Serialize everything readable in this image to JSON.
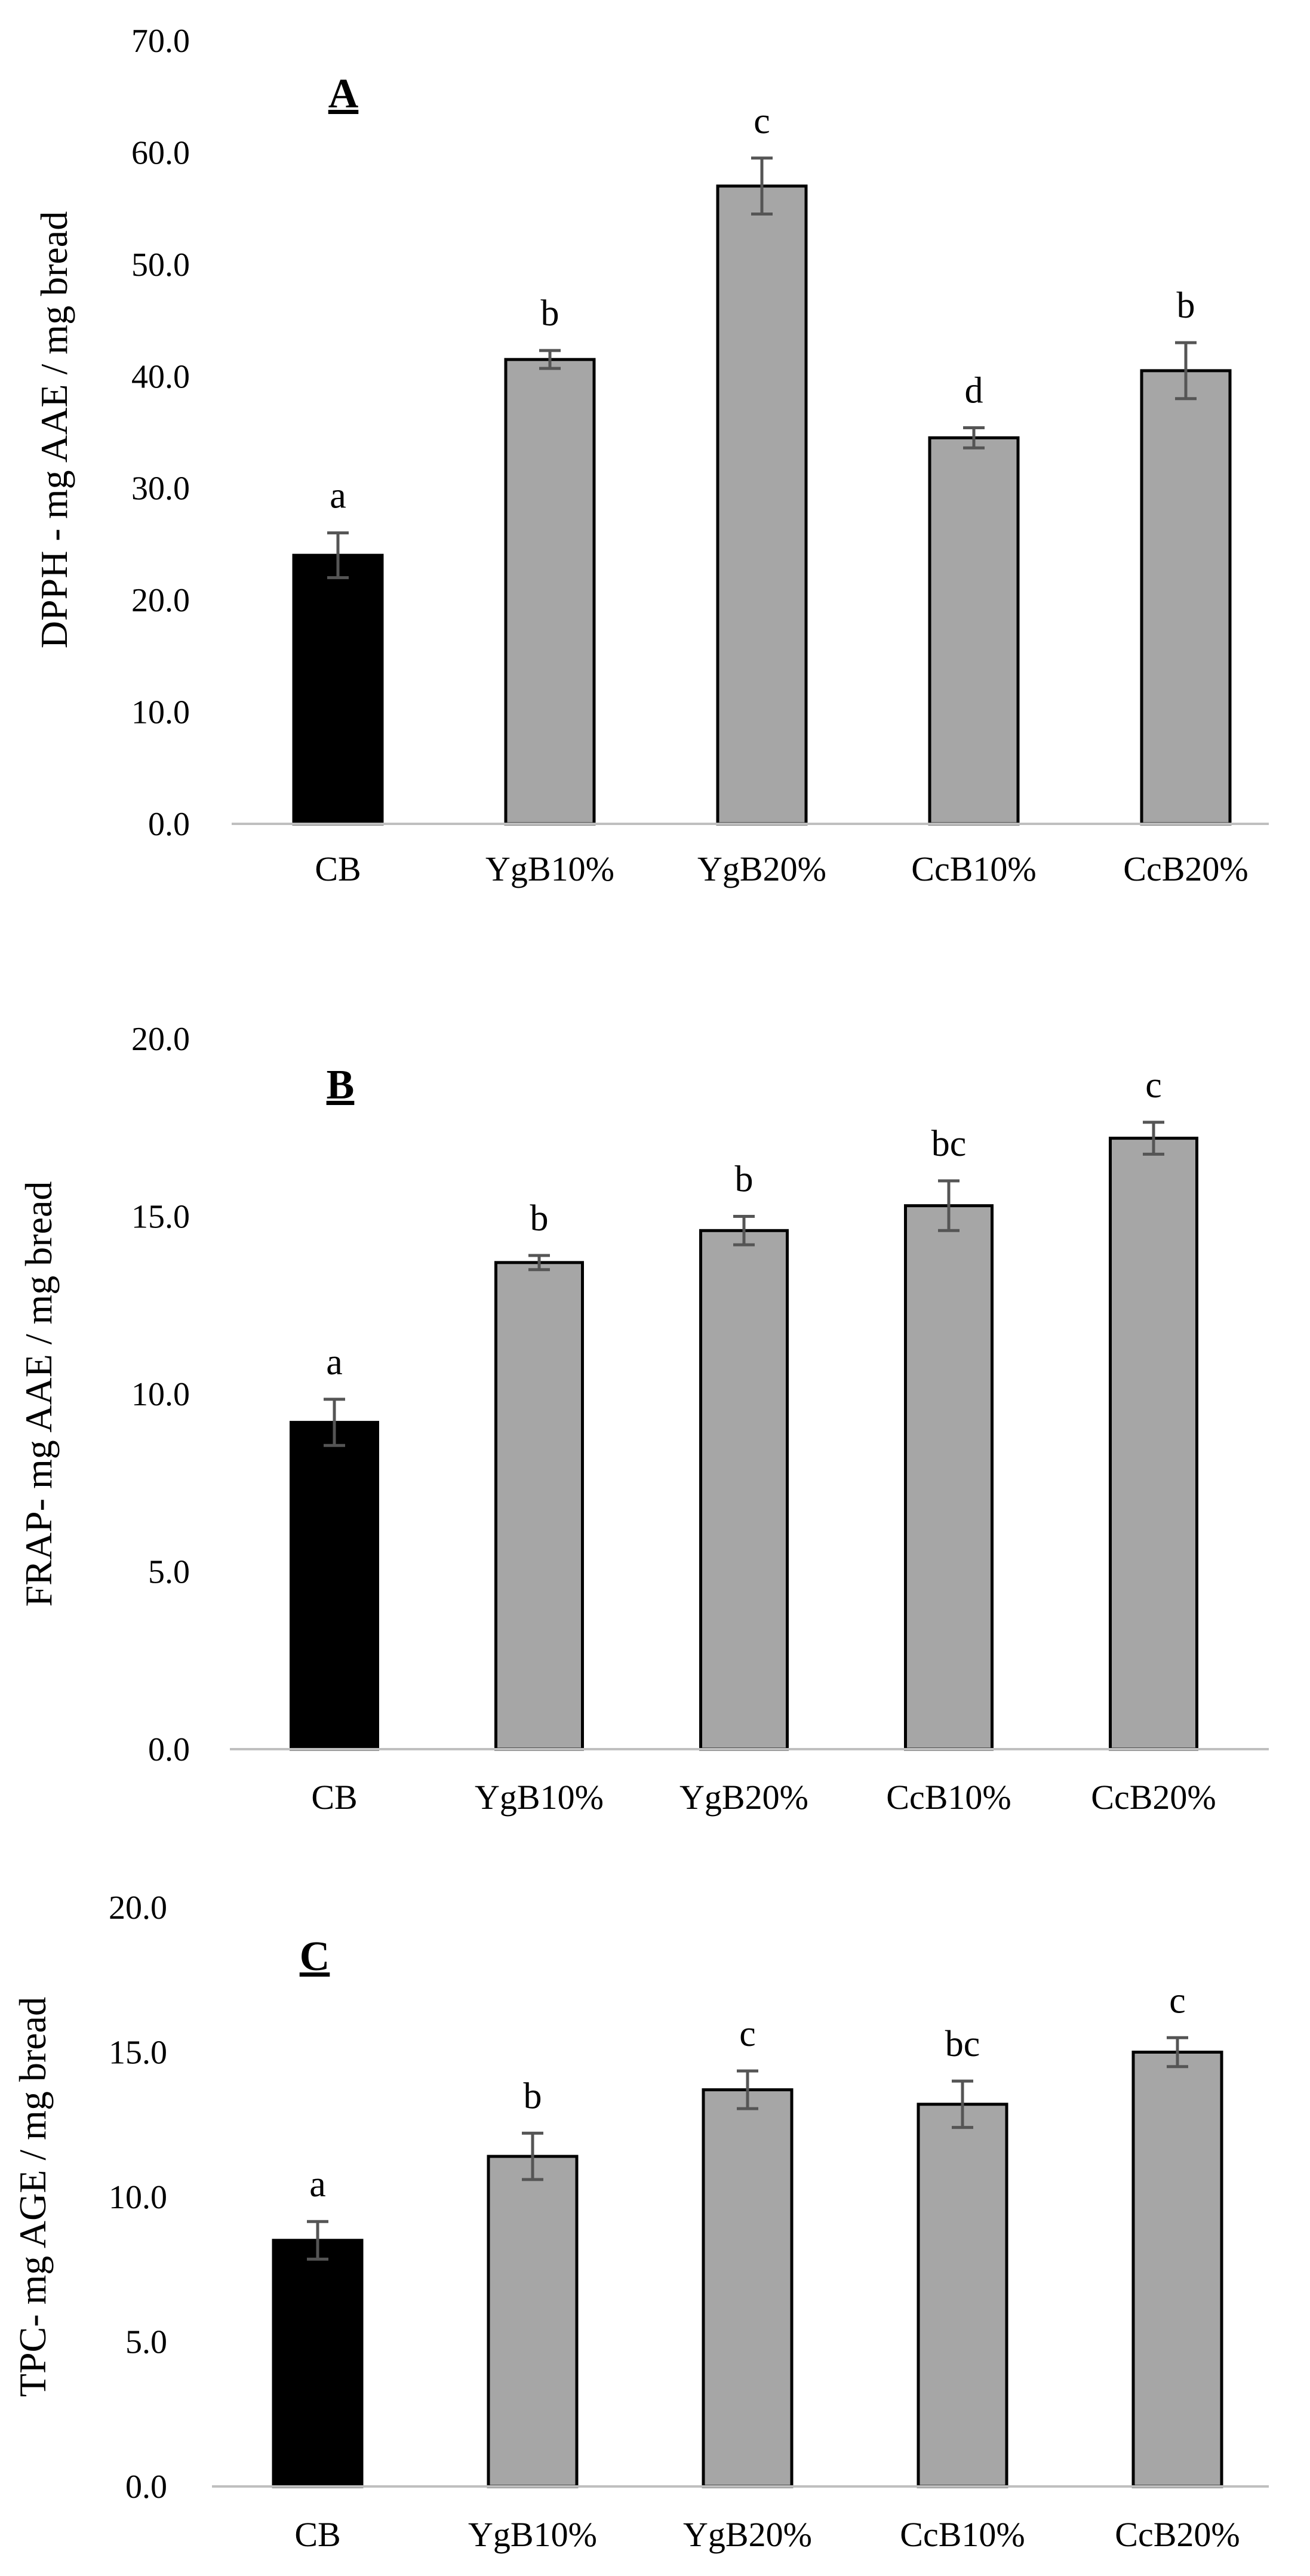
{
  "colors": {
    "control": "#000000",
    "treatment": "#a6a6a6",
    "axis": "#bfbfbf",
    "error": "#555555"
  },
  "chart_data": [
    {
      "type": "bar",
      "panel_label": "A",
      "ylabel": "DPPH - mg AAE / mg bread",
      "xlabel": "",
      "ylim": [
        0,
        70
      ],
      "yticks": [
        "0.0",
        "10.0",
        "20.0",
        "30.0",
        "40.0",
        "50.0",
        "60.0",
        "70.0"
      ],
      "categories": [
        "CB",
        "YgB10%",
        "YgB20%",
        "CcB10%",
        "CcB20%"
      ],
      "values": [
        24.0,
        41.5,
        57.0,
        34.5,
        40.5
      ],
      "errors": [
        2.0,
        0.8,
        2.5,
        0.9,
        2.5
      ],
      "significance": [
        "a",
        "b",
        "c",
        "d",
        "b"
      ],
      "grid": false
    },
    {
      "type": "bar",
      "panel_label": "B",
      "ylabel": "FRAP- mg AAE / mg bread",
      "xlabel": "",
      "ylim": [
        0,
        20
      ],
      "yticks": [
        "0.0",
        "5.0",
        "10.0",
        "15.0",
        "20.0"
      ],
      "categories": [
        "CB",
        "YgB10%",
        "YgB20%",
        "CcB10%",
        "CcB20%"
      ],
      "values": [
        9.2,
        13.7,
        14.6,
        15.3,
        17.2
      ],
      "errors": [
        0.65,
        0.2,
        0.4,
        0.7,
        0.45
      ],
      "significance": [
        "a",
        "b",
        "b",
        "bc",
        "c"
      ],
      "grid": false
    },
    {
      "type": "bar",
      "panel_label": "C",
      "ylabel": "TPC- mg AGE / mg bread",
      "xlabel": "",
      "ylim": [
        0,
        20
      ],
      "yticks": [
        "0.0",
        "5.0",
        "10.0",
        "15.0",
        "20.0"
      ],
      "categories": [
        "CB",
        "YgB10%",
        "YgB20%",
        "CcB10%",
        "CcB20%"
      ],
      "values": [
        8.5,
        11.4,
        13.7,
        13.2,
        15.0
      ],
      "errors": [
        0.65,
        0.8,
        0.65,
        0.8,
        0.5
      ],
      "significance": [
        "a",
        "b",
        "c",
        "bc",
        "c"
      ],
      "grid": false
    }
  ]
}
